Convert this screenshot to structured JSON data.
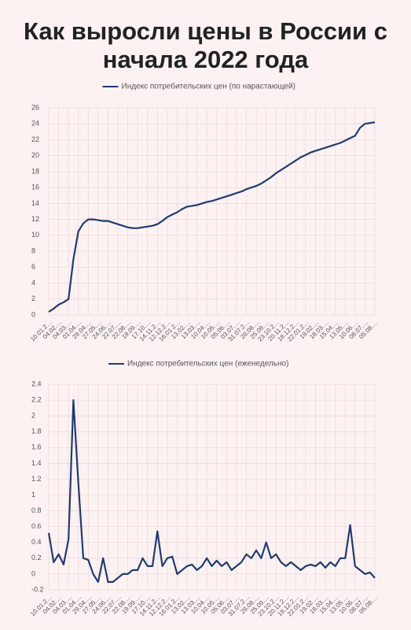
{
  "title": "Как выросли цены в России с начала 2022 года",
  "chart_data": [
    {
      "type": "line",
      "legend": "top",
      "grid": true,
      "categories": [
        "10.01.2…",
        null,
        "04.02.…",
        null,
        "04.03.…",
        null,
        "01.04.…",
        null,
        "29.04.…",
        null,
        "27.05.…",
        null,
        "24.06.…",
        null,
        "22.07.…",
        null,
        "22.08.…",
        null,
        "19.09.…",
        null,
        "17.10.…",
        null,
        "14.11.2…",
        null,
        "12.12.2…",
        null,
        "16.01.2…",
        null,
        "13.02.…",
        null,
        "13.03.…",
        null,
        "10.04.…",
        null,
        "10.05.…",
        null,
        "05.06.…",
        null,
        "03.07.…",
        null,
        "31.07.2…",
        null,
        "28.08.…",
        null,
        "25.09.…",
        null,
        "23.10.2…",
        null,
        "20.11.2…",
        null,
        "18.12.2…",
        null,
        "22.01.2…",
        null,
        "19.02.…",
        null,
        "18.03.…",
        null,
        "15.04.…",
        null,
        "13.05.…",
        null,
        "10.06.…",
        null,
        "08.07.…",
        null,
        "05.08.…"
      ],
      "series": [
        {
          "name": "Индекс потребительских цен (по нарастающей)",
          "color": "#1f3b73",
          "values": [
            0.4,
            0.8,
            1.3,
            1.6,
            2.0,
            7.0,
            10.5,
            11.5,
            12.0,
            12.0,
            11.9,
            11.8,
            11.8,
            11.6,
            11.4,
            11.2,
            11.0,
            10.9,
            10.9,
            11.0,
            11.1,
            11.2,
            11.4,
            11.8,
            12.3,
            12.6,
            12.9,
            13.3,
            13.6,
            13.7,
            13.8,
            14.0,
            14.2,
            14.3,
            14.5,
            14.7,
            14.9,
            15.1,
            15.3,
            15.5,
            15.8,
            16.0,
            16.2,
            16.5,
            16.9,
            17.3,
            17.8,
            18.2,
            18.6,
            19.0,
            19.4,
            19.8,
            20.1,
            20.4,
            20.6,
            20.8,
            21.0,
            21.2,
            21.4,
            21.6,
            21.9,
            22.2,
            22.5,
            23.5,
            24.0,
            24.1,
            24.2
          ]
        }
      ],
      "ylim": [
        0,
        26
      ],
      "yticks": [
        0,
        2,
        4,
        6,
        8,
        10,
        12,
        14,
        16,
        18,
        20,
        22,
        24,
        26
      ]
    },
    {
      "type": "line",
      "legend": "top",
      "grid": true,
      "categories": [
        "10.01.2…",
        null,
        "04.02.…",
        null,
        "04.03.…",
        null,
        "01.04.…",
        null,
        "29.04.…",
        null,
        "27.05.…",
        null,
        "24.06.…",
        null,
        "22.07.…",
        null,
        "22.08.…",
        null,
        "19.09.…",
        null,
        "17.10.…",
        null,
        "14.11.2…",
        null,
        "12.12.2…",
        null,
        "16.01.2…",
        null,
        "13.02.…",
        null,
        "13.03.…",
        null,
        "10.04.…",
        null,
        "10.05.…",
        null,
        "05.06.…",
        null,
        "03.07.…",
        null,
        "31.07.2…",
        null,
        "28.08.…",
        null,
        "25.09.…",
        null,
        "23.10.2…",
        null,
        "20.11.2…",
        null,
        "18.12.2…",
        null,
        "22.01.2…",
        null,
        "19.02.…",
        null,
        "18.03.…",
        null,
        "15.04.…",
        null,
        "13.05.…",
        null,
        "10.06.…",
        null,
        "08.07.…",
        null,
        "05.08.…"
      ],
      "series": [
        {
          "name": "Индекс потребительских цен (еженедельно)",
          "color": "#1f3b73",
          "values": [
            0.52,
            0.15,
            0.25,
            0.12,
            0.44,
            2.2,
            1.15,
            0.2,
            0.18,
            0.0,
            -0.1,
            0.2,
            -0.1,
            -0.1,
            -0.05,
            0.0,
            0.0,
            0.05,
            0.05,
            0.2,
            0.1,
            0.1,
            0.54,
            0.1,
            0.2,
            0.22,
            0.0,
            0.05,
            0.1,
            0.12,
            0.05,
            0.1,
            0.2,
            0.1,
            0.17,
            0.1,
            0.15,
            0.05,
            0.1,
            0.15,
            0.25,
            0.2,
            0.3,
            0.2,
            0.4,
            0.2,
            0.25,
            0.15,
            0.1,
            0.15,
            0.1,
            0.05,
            0.1,
            0.12,
            0.1,
            0.15,
            0.08,
            0.15,
            0.1,
            0.2,
            0.2,
            0.62,
            0.1,
            0.05,
            0.0,
            0.02,
            -0.05
          ]
        }
      ],
      "ylim": [
        -0.2,
        2.4
      ],
      "yticks": [
        -0.2,
        0,
        0.2,
        0.4,
        0.6,
        0.8,
        1,
        1.2,
        1.4,
        1.6,
        1.8,
        2,
        2.2,
        2.4
      ]
    }
  ]
}
